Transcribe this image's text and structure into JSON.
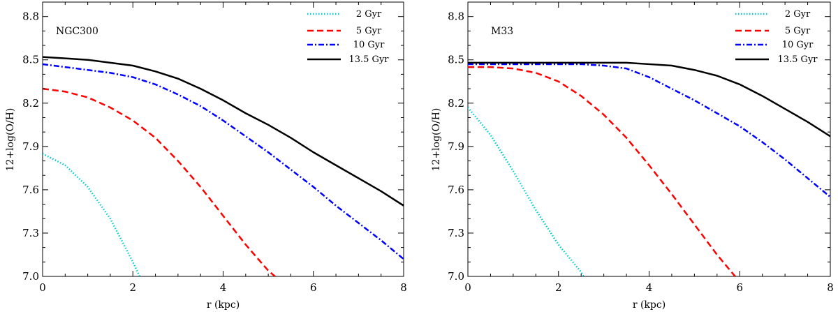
{
  "chart_data": [
    {
      "type": "line",
      "title": "NGC300",
      "xlabel": "r (kpc)",
      "ylabel": "12+log(O/H)",
      "xlim": [
        0,
        8
      ],
      "ylim": [
        7.0,
        8.9
      ],
      "xticks": [
        0,
        2,
        4,
        6,
        8
      ],
      "xtick_labels": [
        "0",
        "2",
        "4",
        "6",
        "8"
      ],
      "yticks": [
        7.0,
        7.3,
        7.6,
        7.9,
        8.2,
        8.5,
        8.8
      ],
      "ytick_labels": [
        "7.0",
        "7.3",
        "7.6",
        "7.9",
        "8.2",
        "8.5",
        "8.8"
      ],
      "grid": false,
      "legend_position": "top-right",
      "series": [
        {
          "name": "2 Gyr",
          "color": "#00ced1",
          "style": "dotted",
          "x": [
            0,
            0.5,
            1.0,
            1.5,
            2.0,
            2.15
          ],
          "y": [
            7.85,
            7.77,
            7.62,
            7.4,
            7.1,
            7.0
          ]
        },
        {
          "name": "5 Gyr",
          "color": "#ff0000",
          "style": "dashed",
          "x": [
            0,
            0.5,
            1.0,
            1.5,
            2.0,
            2.5,
            3.0,
            3.5,
            4.0,
            4.5,
            5.0,
            5.15
          ],
          "y": [
            8.3,
            8.28,
            8.24,
            8.17,
            8.08,
            7.96,
            7.8,
            7.62,
            7.42,
            7.22,
            7.04,
            7.0
          ]
        },
        {
          "name": "10 Gyr",
          "color": "#0000ff",
          "style": "dashdot",
          "x": [
            0,
            0.5,
            1.0,
            1.5,
            2.0,
            2.5,
            3.0,
            3.5,
            4.0,
            4.5,
            5.0,
            5.5,
            6.0,
            6.5,
            7.0,
            7.5,
            8.0
          ],
          "y": [
            8.47,
            8.45,
            8.43,
            8.41,
            8.38,
            8.33,
            8.26,
            8.18,
            8.08,
            7.97,
            7.86,
            7.74,
            7.62,
            7.49,
            7.37,
            7.25,
            7.12
          ]
        },
        {
          "name": "13.5 Gyr",
          "color": "#000000",
          "style": "solid",
          "x": [
            0,
            0.5,
            1.0,
            1.5,
            2.0,
            2.5,
            3.0,
            3.5,
            4.0,
            4.5,
            5.0,
            5.5,
            6.0,
            6.5,
            7.0,
            7.5,
            8.0
          ],
          "y": [
            8.52,
            8.51,
            8.5,
            8.48,
            8.46,
            8.42,
            8.37,
            8.3,
            8.22,
            8.13,
            8.05,
            7.96,
            7.86,
            7.77,
            7.68,
            7.59,
            7.49
          ]
        }
      ]
    },
    {
      "type": "line",
      "title": "M33",
      "xlabel": "r (kpc)",
      "ylabel": "12+log(O/H)",
      "xlim": [
        0,
        8
      ],
      "ylim": [
        7.0,
        8.9
      ],
      "xticks": [
        0,
        2,
        4,
        6,
        8
      ],
      "xtick_labels": [
        "0",
        "2",
        "4",
        "6",
        "8"
      ],
      "yticks": [
        7.0,
        7.3,
        7.6,
        7.9,
        8.2,
        8.5,
        8.8
      ],
      "ytick_labels": [
        "7.0",
        "7.3",
        "7.6",
        "7.9",
        "8.2",
        "8.5",
        "8.8"
      ],
      "grid": false,
      "legend_position": "top-right",
      "series": [
        {
          "name": "2 Gyr",
          "color": "#00ced1",
          "style": "dotted",
          "x": [
            0,
            0.5,
            1.0,
            1.5,
            2.0,
            2.5,
            2.55
          ],
          "y": [
            8.17,
            7.98,
            7.73,
            7.46,
            7.22,
            7.03,
            7.0
          ]
        },
        {
          "name": "5 Gyr",
          "color": "#ff0000",
          "style": "dashed",
          "x": [
            0,
            0.5,
            1.0,
            1.5,
            2.0,
            2.5,
            3.0,
            3.5,
            4.0,
            4.5,
            5.0,
            5.5,
            5.9
          ],
          "y": [
            8.45,
            8.45,
            8.44,
            8.41,
            8.35,
            8.25,
            8.12,
            7.96,
            7.77,
            7.57,
            7.36,
            7.15,
            7.0
          ]
        },
        {
          "name": "10 Gyr",
          "color": "#0000ff",
          "style": "dashdot",
          "x": [
            0,
            0.5,
            1.0,
            1.5,
            2.0,
            2.5,
            3.0,
            3.5,
            4.0,
            4.5,
            5.0,
            5.5,
            6.0,
            6.5,
            7.0,
            7.5,
            8.0
          ],
          "y": [
            8.47,
            8.47,
            8.47,
            8.47,
            8.47,
            8.47,
            8.46,
            8.44,
            8.38,
            8.3,
            8.22,
            8.13,
            8.04,
            7.93,
            7.81,
            7.68,
            7.55
          ]
        },
        {
          "name": "13.5 Gyr",
          "color": "#000000",
          "style": "solid",
          "x": [
            0,
            0.5,
            1.0,
            1.5,
            2.0,
            2.5,
            3.0,
            3.5,
            4.0,
            4.5,
            5.0,
            5.5,
            6.0,
            6.5,
            7.0,
            7.5,
            8.0
          ],
          "y": [
            8.48,
            8.48,
            8.48,
            8.48,
            8.48,
            8.48,
            8.48,
            8.48,
            8.47,
            8.46,
            8.43,
            8.39,
            8.33,
            8.25,
            8.16,
            8.07,
            7.97
          ]
        }
      ]
    }
  ]
}
